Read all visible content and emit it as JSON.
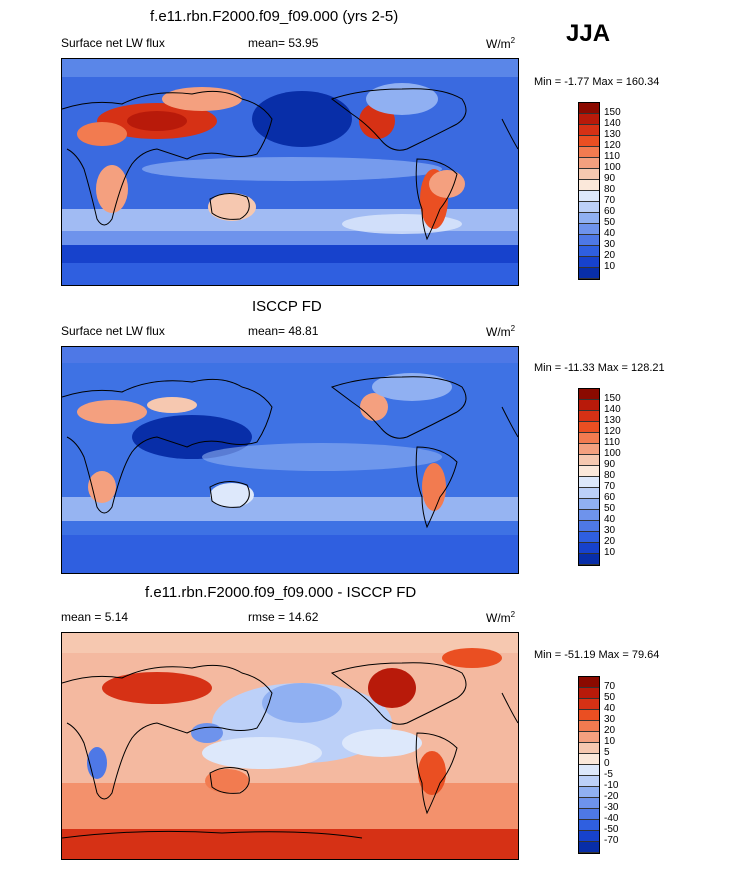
{
  "season": "JJA",
  "panels": [
    {
      "title": "f.e11.rbn.F2000.f09_f09.000 (yrs 2-5)",
      "left_label": "Surface net LW flux",
      "center_label": "mean=  53.95",
      "units": "W/m",
      "units_sup": "2",
      "minmax": "Min =  -1.77 Max = 160.34",
      "cbar_labels": [
        "150",
        "140",
        "130",
        "120",
        "110",
        "100",
        "90",
        "80",
        "70",
        "60",
        "50",
        "40",
        "30",
        "20",
        "10"
      ],
      "cbar_colors": [
        "#8b0a00",
        "#b81a0a",
        "#d63115",
        "#ea4f22",
        "#f27b50",
        "#f4a07f",
        "#f6c8b0",
        "#fbe8da",
        "#dde8fb",
        "#bcd0f8",
        "#90b0f2",
        "#6e93ec",
        "#4e78e6",
        "#2f5fe0",
        "#1742cc",
        "#082ea8"
      ],
      "map_bg": "#3a6ae0"
    },
    {
      "title": "ISCCP FD",
      "left_label": "Surface net LW flux",
      "center_label": "mean=  48.81",
      "units": "W/m",
      "units_sup": "2",
      "minmax": "Min = -11.33 Max = 128.21",
      "cbar_labels": [
        "150",
        "140",
        "130",
        "120",
        "110",
        "100",
        "90",
        "80",
        "70",
        "60",
        "50",
        "40",
        "30",
        "20",
        "10"
      ],
      "cbar_colors": [
        "#8b0a00",
        "#b81a0a",
        "#d63115",
        "#ea4f22",
        "#f27b50",
        "#f4a07f",
        "#f6c8b0",
        "#fbe8da",
        "#dde8fb",
        "#bcd0f8",
        "#90b0f2",
        "#6e93ec",
        "#4e78e6",
        "#2f5fe0",
        "#1742cc",
        "#082ea8"
      ],
      "map_bg": "#3e72e4"
    },
    {
      "title": "f.e11.rbn.F2000.f09_f09.000 - ISCCP FD",
      "left_label": "mean =  5.14",
      "center_label": "rmse =  14.62",
      "units": "W/m",
      "units_sup": "2",
      "minmax": "Min = -51.19 Max =  79.64",
      "cbar_labels": [
        "70",
        "50",
        "40",
        "30",
        "20",
        "10",
        "5",
        "0",
        "-5",
        "-10",
        "-20",
        "-30",
        "-40",
        "-50",
        "-70"
      ],
      "cbar_colors": [
        "#8b0a00",
        "#b81a0a",
        "#d63115",
        "#ea4f22",
        "#f27b50",
        "#f4a07f",
        "#f6c8b0",
        "#fbe8da",
        "#dde8fb",
        "#bcd0f8",
        "#90b0f2",
        "#6e93ec",
        "#4e78e6",
        "#2f5fe0",
        "#1742cc",
        "#082ea8"
      ],
      "map_bg": "#f4b9a0"
    }
  ]
}
